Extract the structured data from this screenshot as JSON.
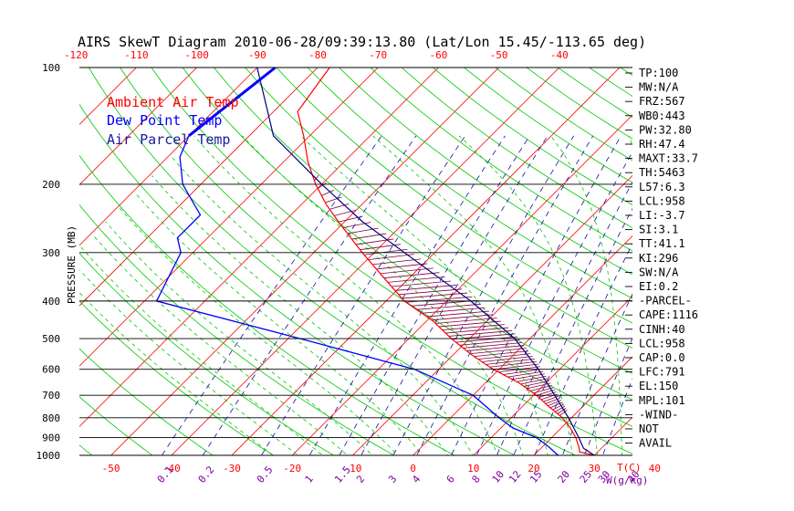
{
  "chart_data": {
    "type": "skewt",
    "title": "AIRS SkewT Diagram 2010-06-28/09:39:13.80 (Lat/Lon 15.45/-113.65 deg)",
    "ylabel": "PRESSURE (MB)",
    "xlabel_units": "T(C)",
    "mixing_ratio_units": "W(g/kg)",
    "pressure_ticks": [
      100,
      200,
      300,
      400,
      500,
      600,
      700,
      800,
      900,
      1000
    ],
    "bottom_temperature_ticks": [
      -50,
      -40,
      -30,
      -20,
      -10,
      0,
      10,
      20,
      30,
      40
    ],
    "top_temperature_ticks": [
      -120,
      -110,
      -100,
      -90,
      -80,
      -70,
      -60,
      -50,
      -40
    ],
    "mixing_ratio_ticks": [
      "0.1",
      "0.2",
      "0.5",
      "1",
      "1.5",
      "2",
      "3",
      "4",
      "6",
      "8",
      "10",
      "12",
      "15",
      "20",
      "25",
      "30",
      "40"
    ],
    "legend": [
      {
        "label": "Ambient Air Temp",
        "color": "#ff0000"
      },
      {
        "label": "Dew Point Temp",
        "color": "#0000ff"
      },
      {
        "label": "Air Parcel Temp",
        "color": "#000080"
      }
    ],
    "series": [
      {
        "name": "Ambient Air Temp",
        "color": "#ff0000",
        "points": [
          {
            "p": 100,
            "t": -78
          },
          {
            "p": 130,
            "t": -76
          },
          {
            "p": 150,
            "t": -71
          },
          {
            "p": 175,
            "t": -66
          },
          {
            "p": 200,
            "t": -61
          },
          {
            "p": 225,
            "t": -56
          },
          {
            "p": 250,
            "t": -51
          },
          {
            "p": 300,
            "t": -42
          },
          {
            "p": 350,
            "t": -34
          },
          {
            "p": 400,
            "t": -27
          },
          {
            "p": 450,
            "t": -19
          },
          {
            "p": 500,
            "t": -13
          },
          {
            "p": 550,
            "t": -7
          },
          {
            "p": 600,
            "t": -1
          },
          {
            "p": 650,
            "t": 5.5
          },
          {
            "p": 700,
            "t": 10.5
          },
          {
            "p": 750,
            "t": 14.5
          },
          {
            "p": 800,
            "t": 18.5
          },
          {
            "p": 850,
            "t": 21.5
          },
          {
            "p": 900,
            "t": 24
          },
          {
            "p": 950,
            "t": 26
          },
          {
            "p": 980,
            "t": 27
          },
          {
            "p": 1000,
            "t": 30
          }
        ]
      },
      {
        "name": "Dew Point Temp",
        "color": "#0000ff",
        "points": [
          {
            "p": 100,
            "t": -87
          },
          {
            "p": 150,
            "t": -90
          },
          {
            "p": 170,
            "t": -88
          },
          {
            "p": 200,
            "t": -83
          },
          {
            "p": 240,
            "t": -75
          },
          {
            "p": 275,
            "t": -75
          },
          {
            "p": 300,
            "t": -72
          },
          {
            "p": 400,
            "t": -68
          },
          {
            "p": 500,
            "t": -38
          },
          {
            "p": 600,
            "t": -14
          },
          {
            "p": 700,
            "t": 0
          },
          {
            "p": 800,
            "t": 8
          },
          {
            "p": 850,
            "t": 12
          },
          {
            "p": 900,
            "t": 17.5
          },
          {
            "p": 950,
            "t": 21
          },
          {
            "p": 1000,
            "t": 24
          }
        ]
      },
      {
        "name": "Air Parcel Temp",
        "color": "#000080",
        "points": [
          {
            "p": 1000,
            "t": 30
          },
          {
            "p": 958,
            "t": 27
          },
          {
            "p": 900,
            "t": 24.5
          },
          {
            "p": 800,
            "t": 19.5
          },
          {
            "p": 700,
            "t": 13.5
          },
          {
            "p": 600,
            "t": 6.5
          },
          {
            "p": 500,
            "t": -2.5
          },
          {
            "p": 400,
            "t": -16
          },
          {
            "p": 300,
            "t": -35
          },
          {
            "p": 250,
            "t": -47
          },
          {
            "p": 200,
            "t": -60
          },
          {
            "p": 150,
            "t": -76
          },
          {
            "p": 100,
            "t": -90
          }
        ]
      }
    ]
  },
  "indices": [
    "TP:100",
    "MW:N/A",
    "FRZ:567",
    "WB0:443",
    "PW:32.80",
    "RH:47.4",
    "MAXT:33.7",
    "TH:5463",
    "L57:6.3",
    "LCL:958",
    "LI:-3.7",
    "SI:3.1",
    "TT:41.1",
    "KI:296",
    "SW:N/A",
    "EI:0.2",
    "-PARCEL-",
    "CAPE:1116",
    "CINH:40",
    "LCL:958",
    "CAP:0.0",
    "LFC:791",
    "EL:150",
    "MPL:101",
    "-WIND-",
    "NOT",
    "AVAIL"
  ],
  "colors": {
    "isotherm": "#ff0000",
    "dry_adiabat": "#00c800",
    "moist_adiabat": "#00c800",
    "mixing_ratio": "#1010a0",
    "axis_top_labels": "#ff0000",
    "axis_bottom_labels": "#ff0000",
    "mixing_labels": "#8000a0",
    "pressure_lines": "#000000",
    "hatch": "#800040"
  }
}
